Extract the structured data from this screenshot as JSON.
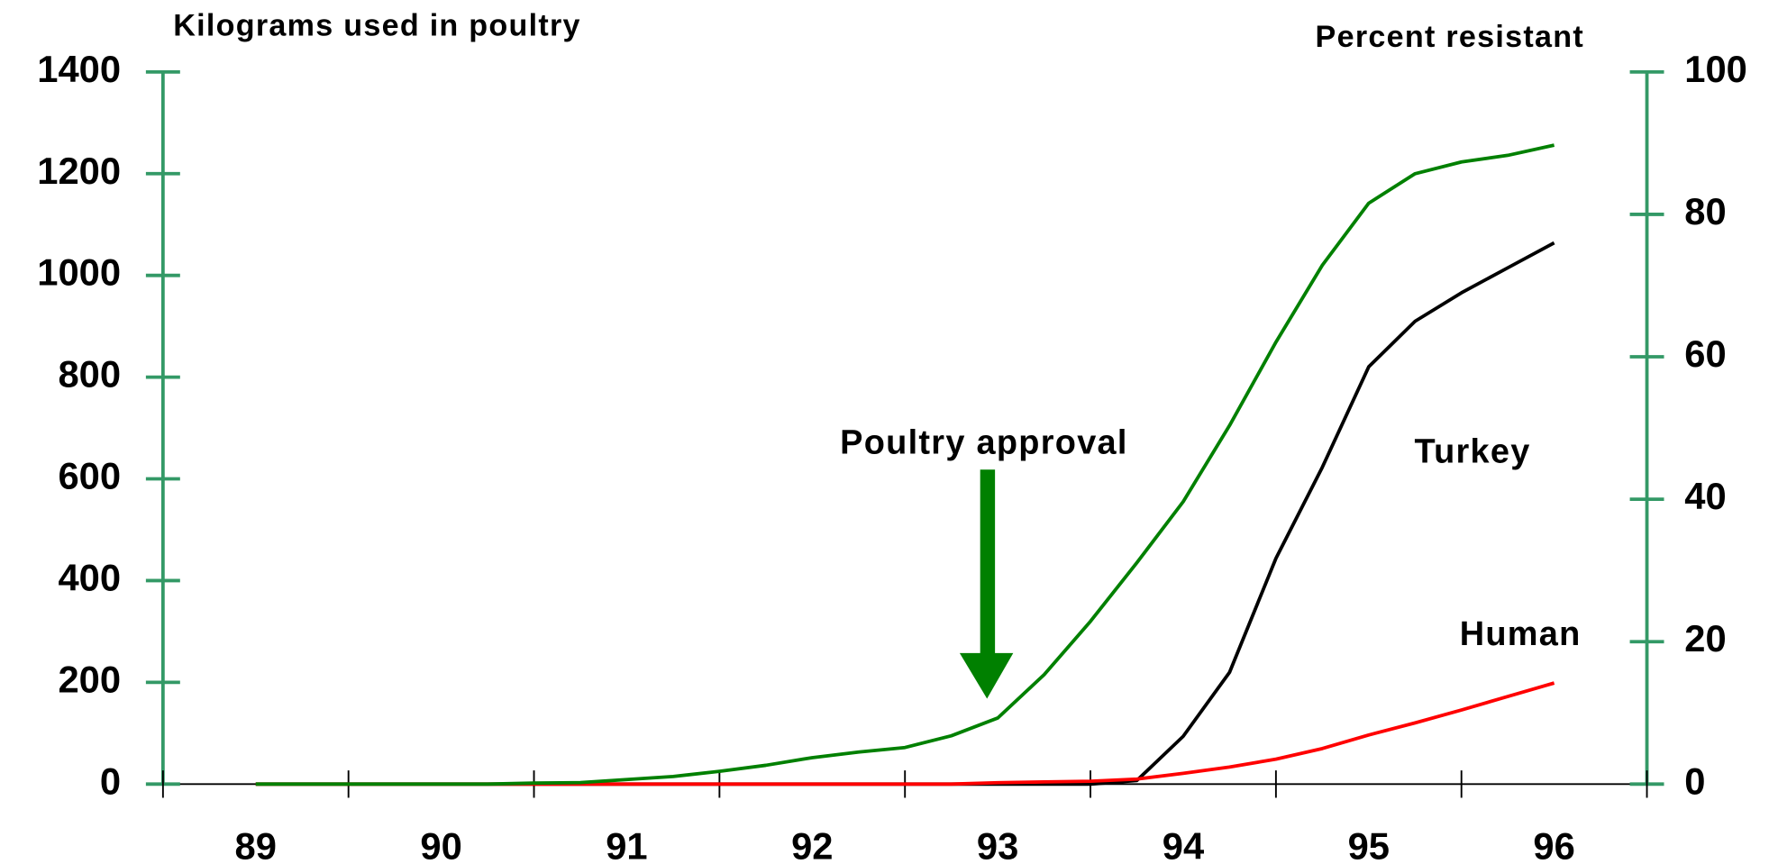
{
  "chart_data": {
    "type": "line",
    "y_title": "Kilograms used in poultry",
    "y2_title": "Percent resistant",
    "x": [
      89,
      89.25,
      89.5,
      89.75,
      90,
      90.25,
      90.5,
      90.75,
      91,
      91.25,
      91.5,
      91.75,
      92,
      92.25,
      92.5,
      92.75,
      93,
      93.25,
      93.5,
      93.75,
      94,
      94.25,
      94.5,
      94.75,
      95,
      95.25,
      95.5,
      95.75,
      96
    ],
    "xlim": [
      88.5,
      96.5
    ],
    "xticks": [
      89,
      90,
      91,
      92,
      93,
      94,
      95,
      96
    ],
    "ylim": [
      0,
      1400
    ],
    "yticks": [
      0,
      200,
      400,
      600,
      800,
      1000,
      1200,
      1400
    ],
    "y2lim": [
      0,
      100
    ],
    "y2ticks": [
      0,
      20,
      40,
      60,
      80,
      100
    ],
    "axis_color": "#339966",
    "series": [
      {
        "color": "#008000",
        "axis": "y",
        "values": [
          0,
          0,
          0,
          0,
          0,
          0,
          2,
          3,
          9,
          15,
          25,
          37,
          52,
          63,
          72,
          95,
          130,
          215,
          320,
          435,
          555,
          705,
          869,
          1020,
          1142,
          1200,
          1223,
          1236,
          1256
        ]
      },
      {
        "name": "Turkey",
        "color": "#000000",
        "axis": "y2",
        "values": [
          0,
          0,
          0,
          0,
          0,
          0,
          0,
          0,
          0,
          0,
          0,
          0,
          0,
          0,
          0,
          0,
          0,
          0,
          0,
          0.5,
          6.7,
          15.7,
          31.7,
          44.5,
          58.6,
          65,
          69,
          72.5,
          76
        ]
      },
      {
        "name": "Human",
        "color": "#ff0000",
        "axis": "y2",
        "values": [
          0,
          0,
          0,
          0,
          0,
          0,
          0,
          0,
          0,
          0,
          0,
          0,
          0,
          0,
          0,
          0,
          0.2,
          0.3,
          0.4,
          0.7,
          1.5,
          2.4,
          3.5,
          5,
          6.9,
          8.6,
          10.4,
          12.3,
          14.2
        ]
      }
    ],
    "annotations": [
      {
        "text": "Poultry approval",
        "x": 93
      }
    ]
  }
}
